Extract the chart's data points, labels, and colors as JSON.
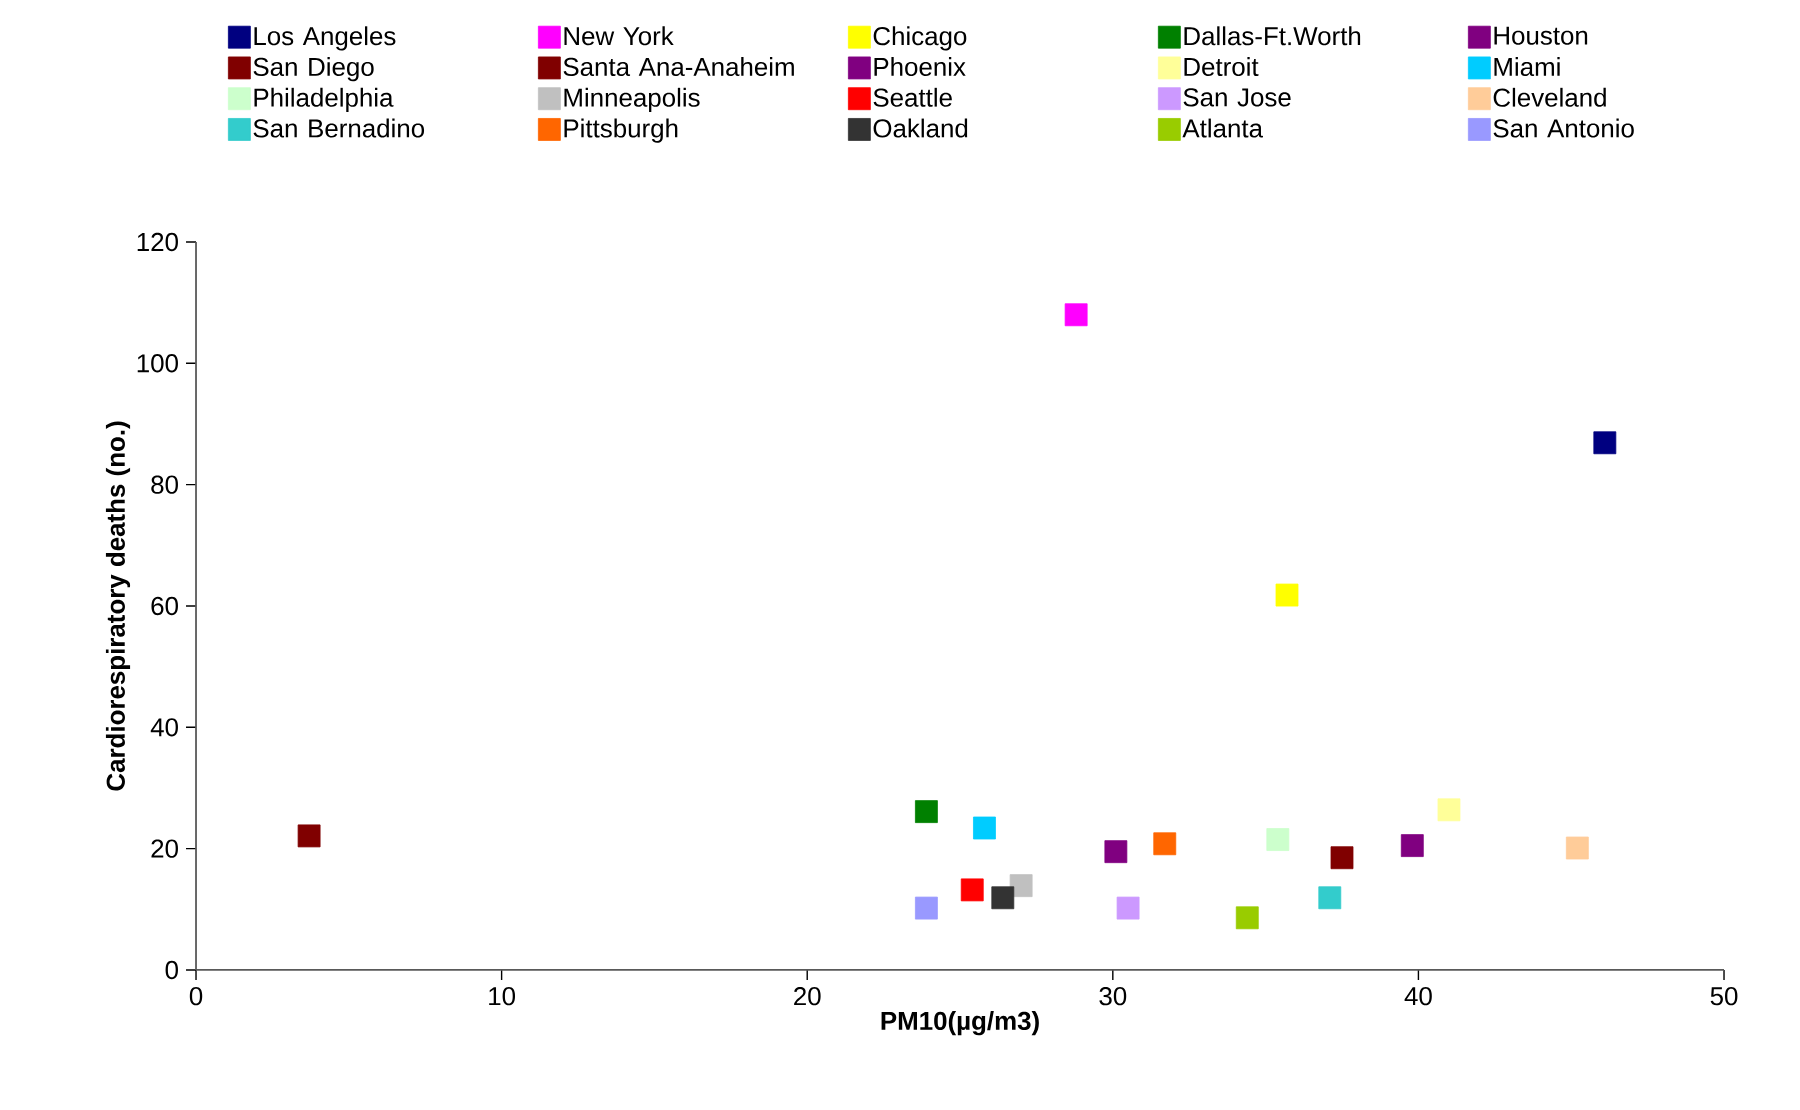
{
  "chart_data": {
    "type": "scatter",
    "xlabel": "PM10(µg/m3)",
    "ylabel": "Cardiorespiratory deaths (no.)",
    "xlim": [
      0,
      50
    ],
    "xticks": [
      0,
      10,
      20,
      30,
      40,
      50
    ],
    "ylim": [
      0,
      120
    ],
    "yticks": [
      0,
      20,
      40,
      60,
      80,
      100,
      120
    ],
    "grid": false,
    "legend": "top",
    "marker": "square",
    "series": [
      {
        "name": "Los Angeles",
        "color": "#000080",
        "x": [
          46.1
        ],
        "values": [
          86.9
        ]
      },
      {
        "name": "New York",
        "color": "#ff00ff",
        "x": [
          28.8
        ],
        "values": [
          108
        ]
      },
      {
        "name": "Chicago",
        "color": "#ffff00",
        "x": [
          35.7
        ],
        "values": [
          61.8
        ]
      },
      {
        "name": "Dallas-Ft.Worth",
        "color": "#008000",
        "x": [
          23.9
        ],
        "values": [
          26.1
        ]
      },
      {
        "name": "Houston",
        "color": "#800080",
        "x": [
          30.1
        ],
        "values": [
          19.5
        ]
      },
      {
        "name": "San Diego",
        "color": "#800000",
        "x": [
          3.7
        ],
        "values": [
          22.1
        ]
      },
      {
        "name": "Santa Ana-Anaheim",
        "color": "#800000",
        "x": [
          37.5
        ],
        "values": [
          18.5
        ]
      },
      {
        "name": "Phoenix",
        "color": "#800080",
        "x": [
          39.8
        ],
        "values": [
          20.5
        ]
      },
      {
        "name": "Detroit",
        "color": "#ffff99",
        "x": [
          41.0
        ],
        "values": [
          26.4
        ]
      },
      {
        "name": "Miami",
        "color": "#00ccff",
        "x": [
          25.8
        ],
        "values": [
          23.4
        ]
      },
      {
        "name": "Philadelphia",
        "color": "#ccffcc",
        "x": [
          35.4
        ],
        "values": [
          21.5
        ]
      },
      {
        "name": "Minneapolis",
        "color": "#c0c0c0",
        "x": [
          27.0
        ],
        "values": [
          13.9
        ]
      },
      {
        "name": "Seattle",
        "color": "#ff0000",
        "x": [
          25.4
        ],
        "values": [
          13.2
        ]
      },
      {
        "name": "San Jose",
        "color": "#cc99ff",
        "x": [
          30.5
        ],
        "values": [
          10.2
        ]
      },
      {
        "name": "Cleveland",
        "color": "#ffcc99",
        "x": [
          45.2
        ],
        "values": [
          20.1
        ]
      },
      {
        "name": "San Bernadino",
        "color": "#33cccc",
        "x": [
          37.1
        ],
        "values": [
          11.9
        ]
      },
      {
        "name": "Pittsburgh",
        "color": "#ff6600",
        "x": [
          31.7
        ],
        "values": [
          20.8
        ]
      },
      {
        "name": "Oakland",
        "color": "#333333",
        "x": [
          26.4
        ],
        "values": [
          11.9
        ]
      },
      {
        "name": "Atlanta",
        "color": "#99cc00",
        "x": [
          34.4
        ],
        "values": [
          8.6
        ]
      },
      {
        "name": "San Antonio",
        "color": "#9999ff",
        "x": [
          23.9
        ],
        "values": [
          10.2
        ]
      }
    ]
  }
}
